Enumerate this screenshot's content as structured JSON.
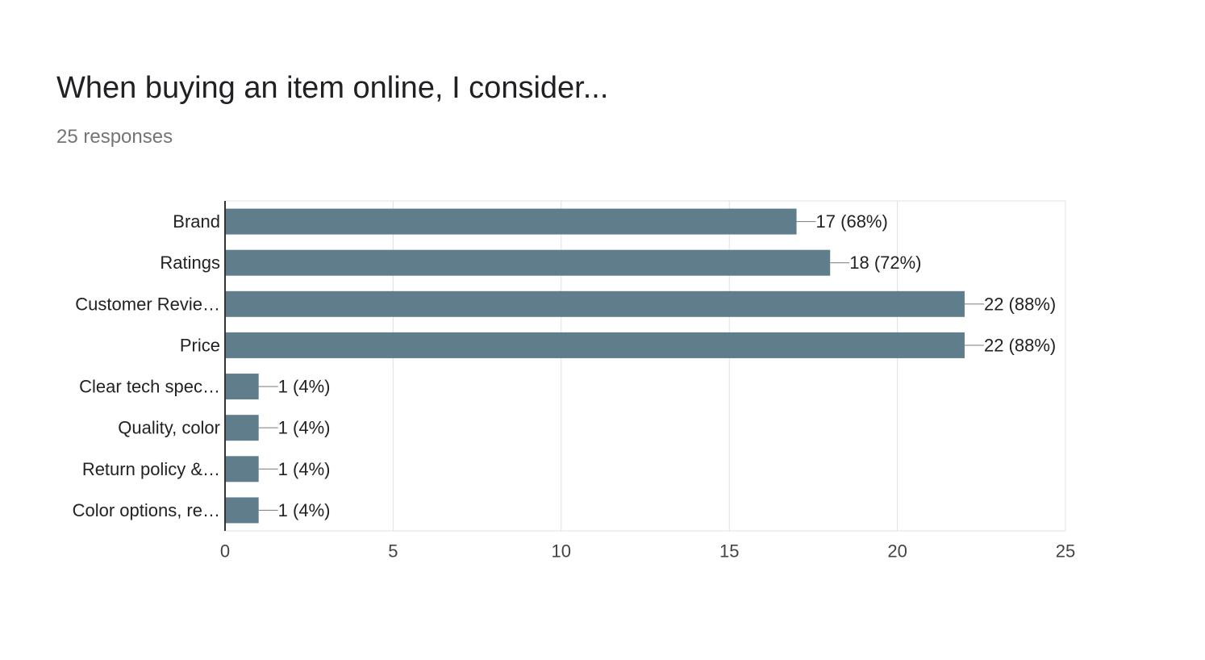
{
  "header": {
    "title": "When buying an item online, I consider...",
    "responses": "25 responses"
  },
  "colors": {
    "bar": "#607d8b",
    "grid": "#e0e0e0",
    "axis": "#333333",
    "text": "#222222",
    "tick_text": "#444444",
    "leader": "#888888"
  },
  "chart_data": {
    "type": "bar",
    "orientation": "horizontal",
    "categories": [
      "Brand",
      "Ratings",
      "Customer Revie…",
      "Price",
      "Clear tech spec…",
      "Quality, color",
      "Return policy &…",
      "Color options, re…"
    ],
    "values": [
      17,
      18,
      22,
      22,
      1,
      1,
      1,
      1
    ],
    "data_labels": [
      "17 (68%)",
      "18 (72%)",
      "22 (88%)",
      "22 (88%)",
      "1 (4%)",
      "1 (4%)",
      "1 (4%)",
      "1 (4%)"
    ],
    "xlim": [
      0,
      25
    ],
    "xticks": [
      0,
      5,
      10,
      15,
      20,
      25
    ],
    "grid": true,
    "legend": "none"
  }
}
